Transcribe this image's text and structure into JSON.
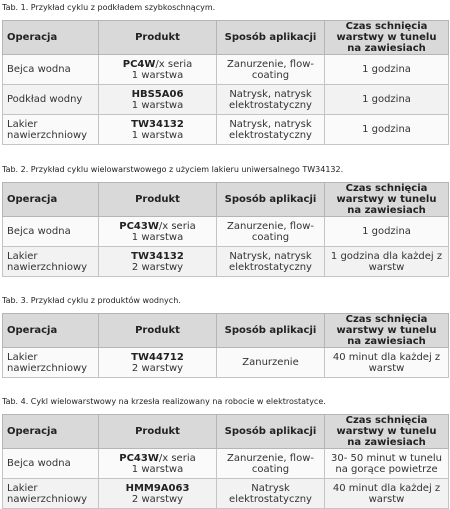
{
  "headers": [
    "Operacja",
    "Produkt",
    "Sposób aplikacji",
    "Czas schnięcia warstwy w tunelu na zawiesiach"
  ],
  "tables": [
    {
      "caption": "Tab. 1. Przykład cyklu z podkładem szybkoschnącym.",
      "rows": [
        {
          "operacja": "Bejca wodna",
          "produkt": "PC4W",
          "produkt_suffix": "/x seria",
          "warstwy": "1 warstwa",
          "sposob": "Zanurzenie, flow-coating",
          "czas": "1 godzina"
        },
        {
          "operacja": "Podkład wodny",
          "produkt": "HBS5A06",
          "produkt_suffix": "",
          "warstwy": "1 warstwa",
          "sposob": "Natrysk, natrysk elektrostatyczny",
          "czas": "1 godzina"
        },
        {
          "operacja": "Lakier nawierzchniowy",
          "produkt": "TW34132",
          "produkt_suffix": "",
          "warstwy": "1 warstwa",
          "sposob": "Natrysk, natrysk elektrostatyczny",
          "czas": "1 godzina"
        }
      ]
    },
    {
      "caption": "Tab. 2. Przykład cyklu wielowarstwowego z użyciem lakieru uniwersalnego TW34132.",
      "rows": [
        {
          "operacja": "Bejca wodna",
          "produkt": "PC43W",
          "produkt_suffix": "/x seria",
          "warstwy": "1 warstwa",
          "sposob": "Zanurzenie, flow-coating",
          "czas": "1 godzina"
        },
        {
          "operacja": "Lakier nawierzchniowy",
          "produkt": "TW34132",
          "produkt_suffix": "",
          "warstwy": "2 warstwy",
          "sposob": "Natrysk, natrysk elektrostatyczny",
          "czas": "1 godzina dla każdej z warstw"
        }
      ]
    },
    {
      "caption": "Tab. 3. Przykład cyklu z produktów wodnych.",
      "rows": [
        {
          "operacja": "Lakier nawierzchniowy",
          "produkt": "TW44712",
          "produkt_suffix": "",
          "warstwy": "2 warstwy",
          "sposob": "Zanurzenie",
          "czas": "40 minut dla każdej z warstw"
        }
      ]
    },
    {
      "caption": "Tab. 4. Cykl wielowarstwowy na krzesła realizowany na robocie w elektrostatyce.",
      "rows": [
        {
          "operacja": "Bejca wodna",
          "produkt": "PC43W",
          "produkt_suffix": "/x seria",
          "warstwy": "1 warstwa",
          "sposob": "Zanurzenie, flow-coating",
          "czas": "30- 50 minut w tunelu na gorące powietrze"
        },
        {
          "operacja": "Lakier nawierzchniowy",
          "produkt": "HMM9A063",
          "produkt_suffix": "",
          "warstwy": "2 warstwy",
          "sposob": "Natrysk elektrostatyczny",
          "czas": "40 minut dla każdej z warstw"
        }
      ]
    }
  ]
}
